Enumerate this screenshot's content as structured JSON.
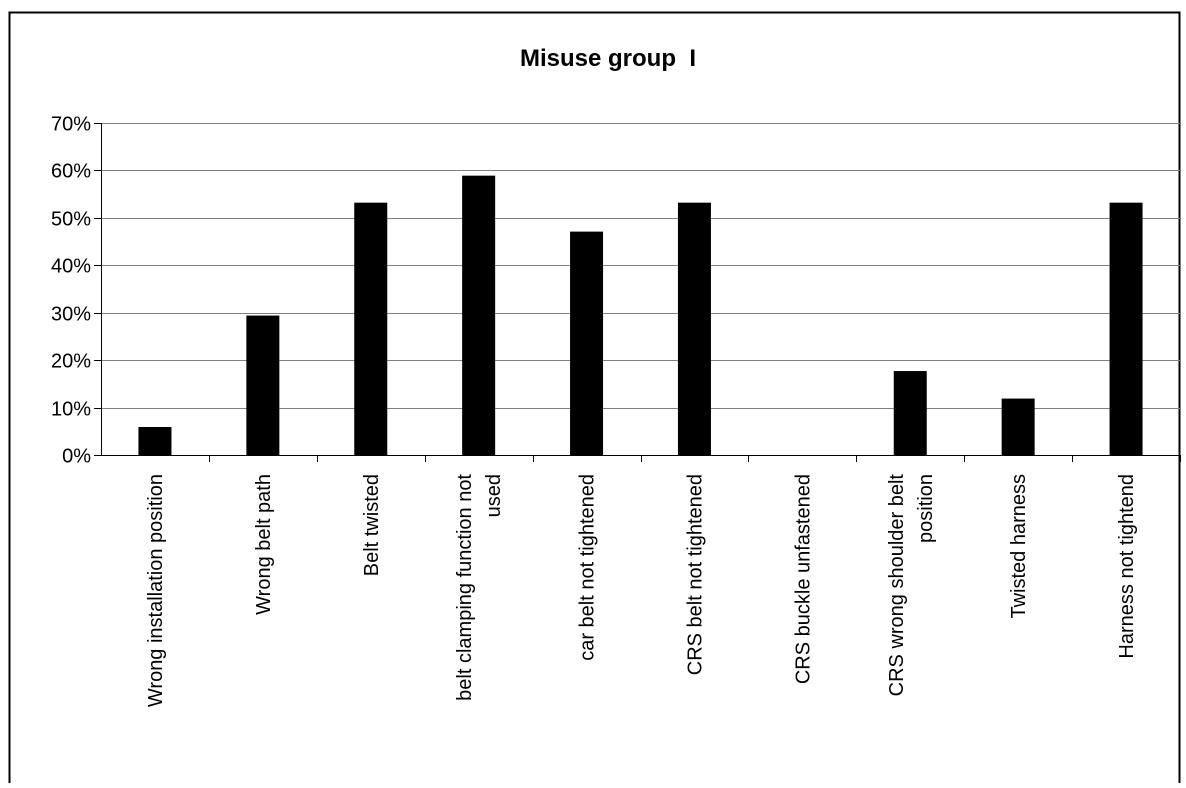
{
  "chart_data": {
    "type": "bar",
    "title": "Misuse group  I",
    "categories": [
      [
        "Wrong installation position"
      ],
      [
        "Wrong belt path"
      ],
      [
        "Belt twisted"
      ],
      [
        "belt clamping function not",
        "used"
      ],
      [
        "car belt not tightened"
      ],
      [
        "CRS belt not tightened"
      ],
      [
        "CRS buckle unfastened"
      ],
      [
        "CRS wrong shoulder belt",
        "position"
      ],
      [
        "Twisted harness"
      ],
      [
        "Harness not tightend"
      ]
    ],
    "values": [
      0.059,
      0.294,
      0.532,
      0.589,
      0.471,
      0.532,
      0.0,
      0.177,
      0.119,
      0.532
    ],
    "ylim": [
      0,
      0.7
    ],
    "yticks": [
      "0%",
      "10%",
      "20%",
      "30%",
      "40%",
      "50%",
      "60%",
      "70%"
    ],
    "grid": true,
    "legend": "none",
    "colors": {
      "bar": "#000000",
      "grid": "#808080",
      "axis": "#000000"
    }
  }
}
